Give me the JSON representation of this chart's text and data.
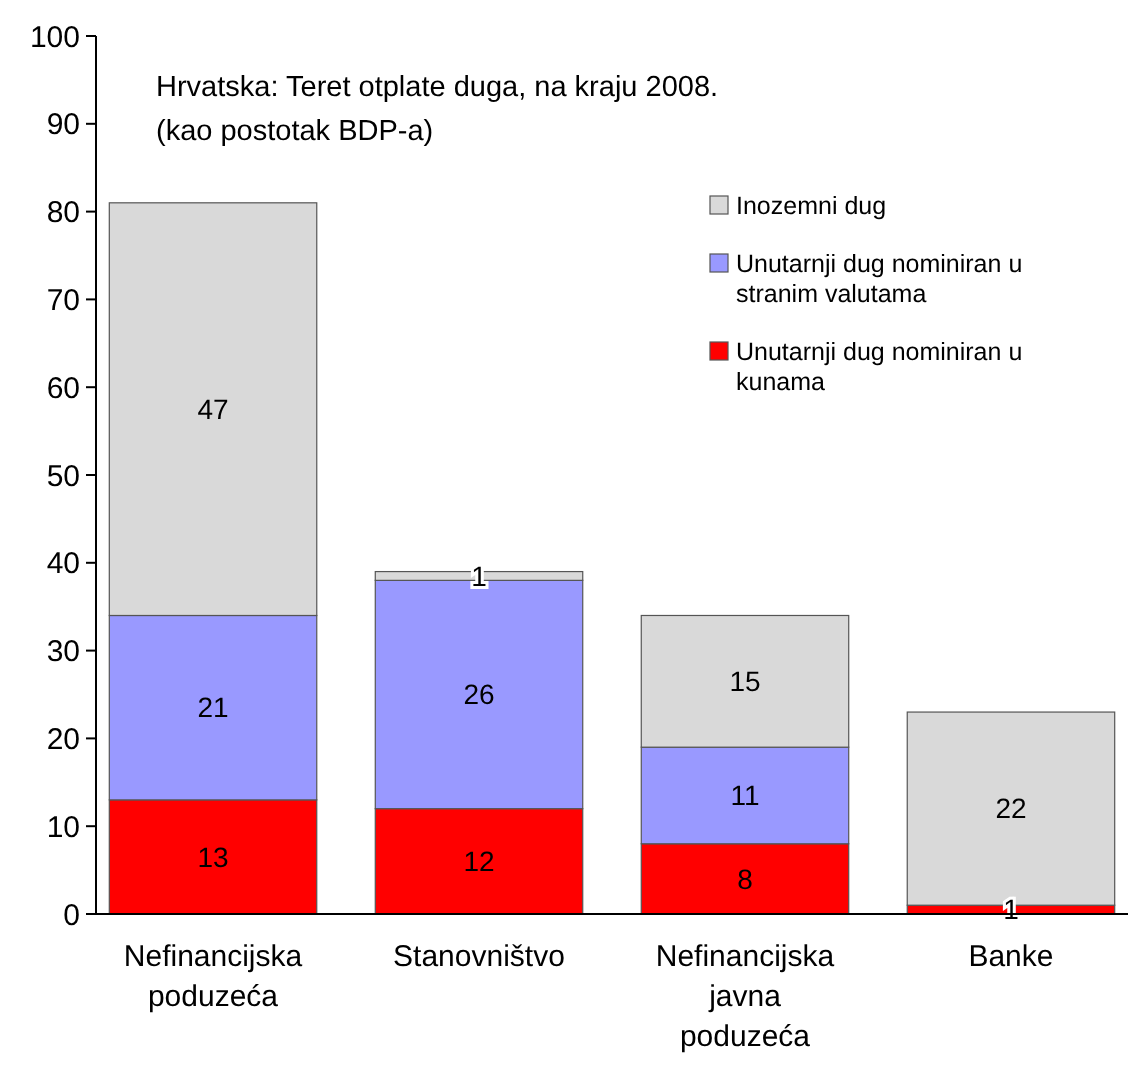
{
  "chart_data": {
    "type": "bar",
    "stacked": true,
    "title": "Hrvatska: Teret otplate duga, na kraju 2008.",
    "subtitle": "(kao postotak BDP-a)",
    "categories": [
      "Nefinancijska poduzeća",
      "Stanovništvo",
      "Nefinancijska javna poduzeća",
      "Banke"
    ],
    "series": [
      {
        "name": "Unutarnji dug nominiran u kunama",
        "color": "#ff0000",
        "values": [
          13,
          12,
          8,
          1
        ],
        "value_labels": [
          "13",
          "12",
          "8",
          "1"
        ]
      },
      {
        "name": "Unutarnji dug nominiran u stranim valutama",
        "color": "#9999ff",
        "values": [
          21,
          26,
          11,
          0
        ],
        "value_labels": [
          "21",
          "26",
          "11",
          null
        ]
      },
      {
        "name": "Inozemni dug",
        "color": "#d9d9d9",
        "values": [
          47,
          1,
          15,
          22
        ],
        "value_labels": [
          "47",
          "1",
          "15",
          "22"
        ]
      }
    ],
    "ylim": [
      0,
      100
    ],
    "yticks": [
      0,
      10,
      20,
      30,
      40,
      50,
      60,
      70,
      80,
      90,
      100
    ],
    "legend": "top right",
    "grid": false
  }
}
